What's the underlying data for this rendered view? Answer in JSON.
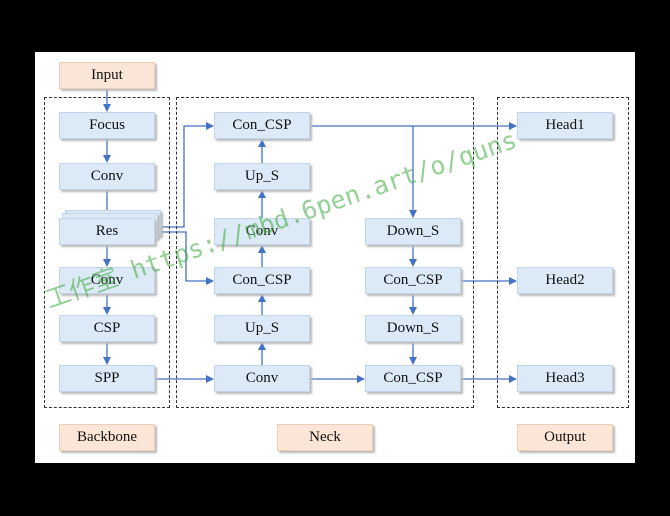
{
  "diagram": {
    "input": "Input",
    "backbone": {
      "label": "Backbone",
      "focus": "Focus",
      "conv": "Conv",
      "res": "Res",
      "conv2": "Conv",
      "csp": "CSP",
      "spp": "SPP"
    },
    "neck": {
      "label": "Neck",
      "con_csp_top": "Con_CSP",
      "up_s_top": "Up_S",
      "conv_mid": "Conv",
      "con_csp_mid": "Con_CSP",
      "up_s_bottom": "Up_S",
      "conv_bottom": "Conv",
      "down_s_top": "Down_S",
      "con_csp_right": "Con_CSP",
      "down_s_bottom": "Down_S",
      "con_csp_bottom": "Con_CSP"
    },
    "output": {
      "label": "Output",
      "head1": "Head1",
      "head2": "Head2",
      "head3": "Head3"
    }
  },
  "watermark": "工作室 https://mbd.6pen.art/o/quns",
  "colors": {
    "box_fill": "#dce9f6",
    "label_fill": "#fbe5d6",
    "arrow": "#4472c4"
  }
}
